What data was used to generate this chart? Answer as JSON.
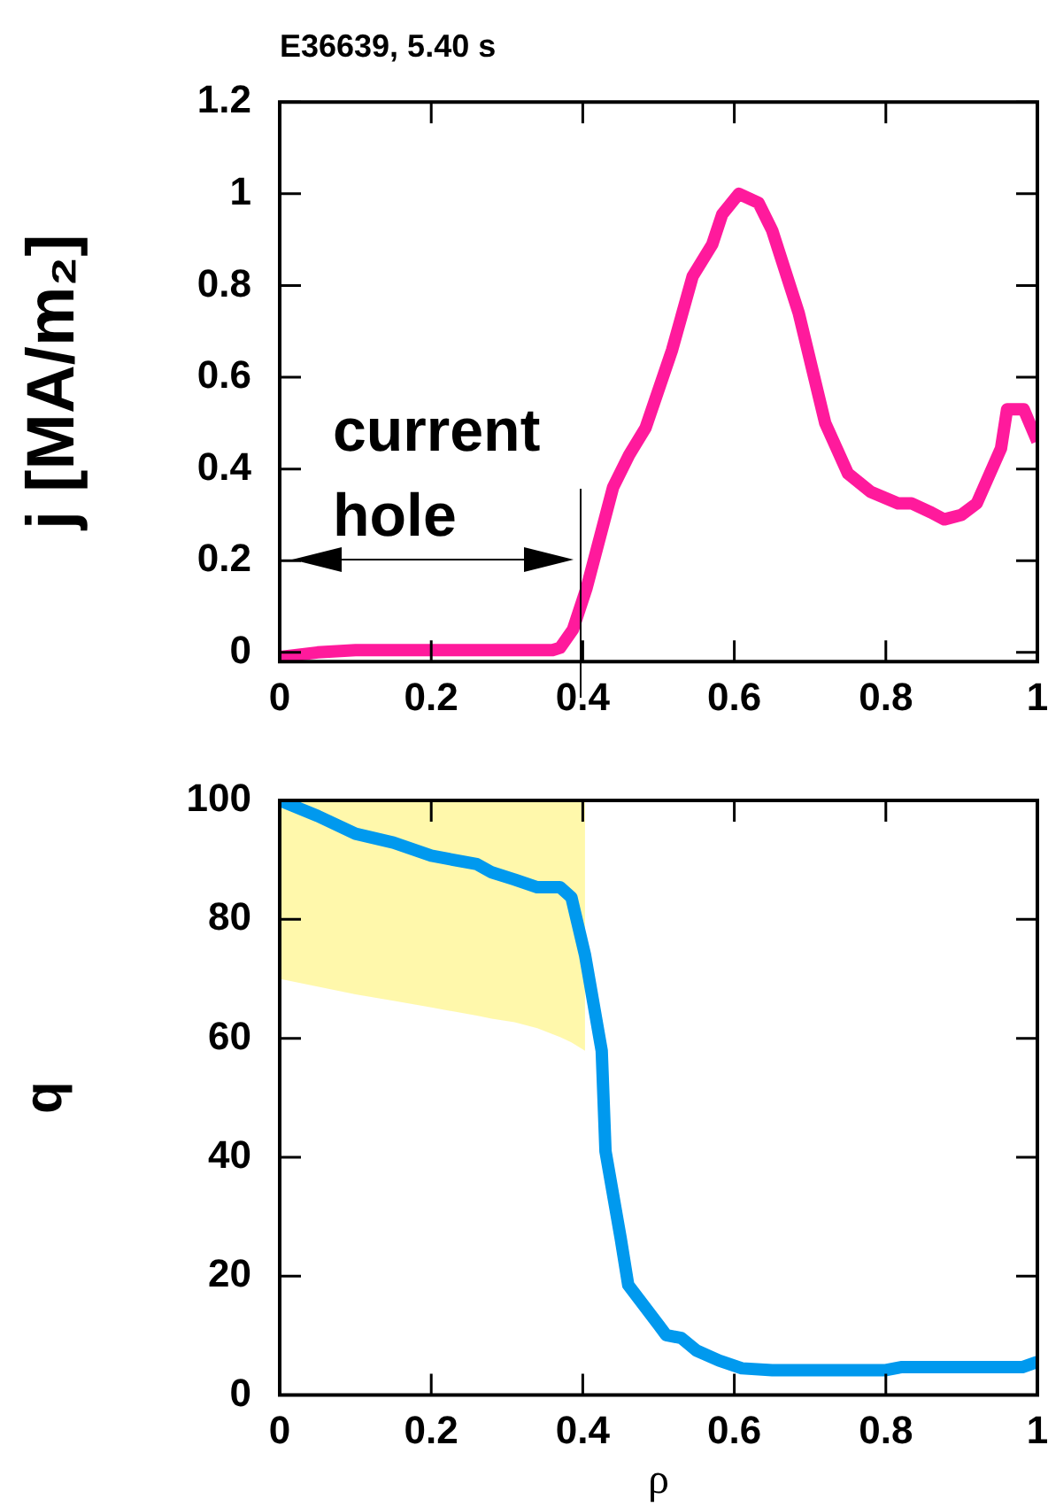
{
  "chart_data": [
    {
      "type": "line",
      "title": "E36639, 5.40 s",
      "ylabel": "j [MA/m₂]",
      "annotations": [
        "current hole"
      ],
      "xlim": [
        0,
        1
      ],
      "xticks": [
        0,
        0.2,
        0.4,
        0.6,
        0.8,
        1
      ],
      "ylim": [
        -0.02,
        1.2
      ],
      "yticks": [
        0,
        0.2,
        0.4,
        0.6,
        0.8,
        1,
        1.2
      ],
      "series": [
        {
          "color": "#ff1a9c",
          "x": [
            0,
            0.05,
            0.1,
            0.2,
            0.3,
            0.36,
            0.37,
            0.387,
            0.405,
            0.44,
            0.461,
            0.483,
            0.518,
            0.545,
            0.571,
            0.584,
            0.606,
            0.632,
            0.65,
            0.685,
            0.72,
            0.75,
            0.78,
            0.816,
            0.834,
            0.86,
            0.877,
            0.9,
            0.92,
            0.952,
            0.96,
            0.982,
            1.0
          ],
          "values": [
            -0.01,
            0.0,
            0.005,
            0.005,
            0.005,
            0.005,
            0.01,
            0.05,
            0.14,
            0.36,
            0.43,
            0.49,
            0.66,
            0.82,
            0.89,
            0.955,
            1.0,
            0.98,
            0.92,
            0.74,
            0.5,
            0.39,
            0.35,
            0.325,
            0.325,
            0.305,
            0.29,
            0.3,
            0.325,
            0.445,
            0.53,
            0.53,
            0.46
          ]
        }
      ]
    },
    {
      "type": "line",
      "xlabel": "ρ",
      "ylabel": "q",
      "xlim": [
        0,
        1
      ],
      "xticks": [
        0,
        0.2,
        0.4,
        0.6,
        0.8,
        1
      ],
      "ylim": [
        0,
        100
      ],
      "yticks": [
        0,
        20,
        40,
        60,
        80,
        100
      ],
      "series": [
        {
          "color": "#0099ee",
          "x": [
            0,
            0.05,
            0.1,
            0.15,
            0.2,
            0.26,
            0.28,
            0.31,
            0.34,
            0.37,
            0.385,
            0.403,
            0.425,
            0.43,
            0.45,
            0.46,
            0.5,
            0.51,
            0.53,
            0.55,
            0.58,
            0.61,
            0.65,
            0.8,
            0.82,
            0.98,
            1.0
          ],
          "values": [
            100,
            97.4,
            94.4,
            92.9,
            90.7,
            89.3,
            87.9,
            86.7,
            85.4,
            85.4,
            83.7,
            74,
            57.9,
            41,
            26.4,
            18.5,
            11.8,
            10.1,
            9.6,
            7.5,
            5.8,
            4.5,
            4.2,
            4.2,
            4.7,
            4.7,
            5.6
          ],
          "lower": [
            70,
            68.7,
            67.4,
            66.3,
            65.2,
            63.8,
            63.3,
            62.7,
            61.7,
            60.2,
            59.3,
            57.9,
            null,
            null,
            null,
            null,
            null,
            null,
            null,
            null,
            null,
            null,
            null,
            null,
            null,
            null,
            null
          ],
          "upper": [
            100,
            100,
            100,
            100,
            100,
            100,
            100,
            100,
            100,
            100,
            100,
            100,
            null,
            null,
            null,
            null,
            null,
            null,
            null,
            null,
            null,
            null,
            null,
            null,
            null,
            null,
            null
          ]
        }
      ]
    }
  ]
}
